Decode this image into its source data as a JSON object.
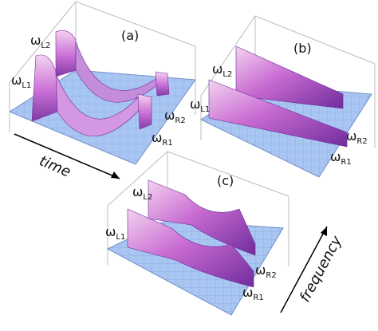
{
  "panels": [
    {
      "tag": "(a)",
      "labels": {
        "L1": "ω",
        "L1_sub": "L1",
        "L2": "ω",
        "L2_sub": "L2",
        "R1": "ω",
        "R1_sub": "R1",
        "R2": "ω",
        "R2_sub": "R2"
      }
    },
    {
      "tag": "(b)",
      "labels": {
        "L1": "ω",
        "L1_sub": "L1",
        "L2": "ω",
        "L2_sub": "L2",
        "R1": "ω",
        "R1_sub": "R1",
        "R2": "ω",
        "R2_sub": "R2"
      }
    },
    {
      "tag": "(c)",
      "labels": {
        "L1": "ω",
        "L1_sub": "L1",
        "L2": "ω",
        "L2_sub": "L2",
        "R1": "ω",
        "R1_sub": "R1",
        "R2": "ω",
        "R2_sub": "R2"
      }
    }
  ],
  "axes": {
    "time_label": "time",
    "frequency_label": "frequency"
  },
  "colors": {
    "base_plane": "#a9c6f2",
    "wall_light": "#f0c8e8",
    "wall_mid": "#c86ad2",
    "wall_dark": "#6a2a9a"
  }
}
